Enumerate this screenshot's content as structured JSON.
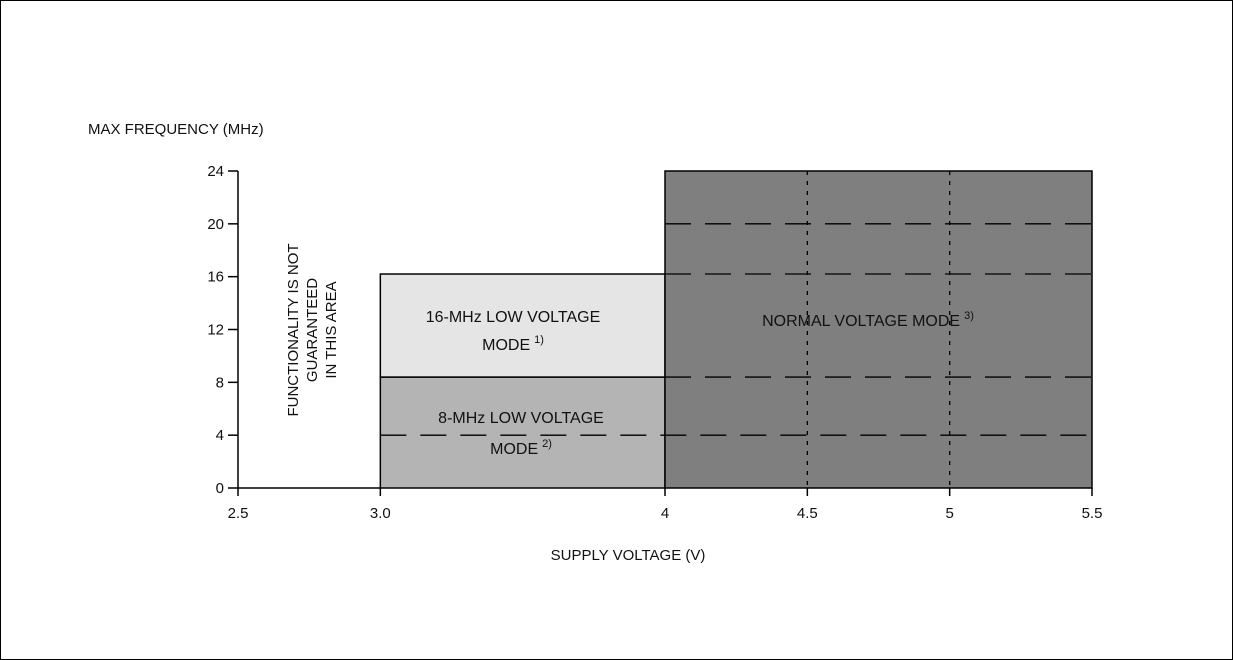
{
  "chart_data": {
    "type": "area",
    "title": "",
    "xlabel": "SUPPLY VOLTAGE (V)",
    "ylabel": "MAX FREQUENCY (MHz)",
    "xlim": [
      2.5,
      5.5
    ],
    "ylim": [
      0,
      24
    ],
    "x_ticks": [
      {
        "value": 2.5,
        "label": "2.5"
      },
      {
        "value": 3.0,
        "label": "3.0"
      },
      {
        "value": 4,
        "label": "4"
      },
      {
        "value": 4.5,
        "label": "4.5"
      },
      {
        "value": 5,
        "label": "5"
      },
      {
        "value": 5.5,
        "label": "5.5"
      }
    ],
    "y_ticks": [
      {
        "value": 0,
        "label": "0"
      },
      {
        "value": 4,
        "label": "4"
      },
      {
        "value": 8,
        "label": "8"
      },
      {
        "value": 12,
        "label": "12"
      },
      {
        "value": 16,
        "label": "16"
      },
      {
        "value": 20,
        "label": "20"
      },
      {
        "value": 24,
        "label": "24"
      }
    ],
    "regions": [
      {
        "name": "8-MHz LOW VOLTAGE MODE",
        "label_lines": [
          "8-MHz LOW  VOLTAGE",
          "MODE"
        ],
        "note": "2)",
        "x0": 3.0,
        "x1": 4,
        "y0": 0,
        "y1": 8.4,
        "color": "#b4b4b4"
      },
      {
        "name": "16-MHz LOW VOLTAGE MODE",
        "label_lines": [
          "16-MHz LOW VOLTAGE",
          "MODE"
        ],
        "note": "1)",
        "x0": 3.0,
        "x1": 4,
        "y0": 8.4,
        "y1": 16.2,
        "color": "#e5e5e5"
      },
      {
        "name": "NORMAL VOLTAGE MODE",
        "label_lines": [
          "NORMAL VOLTAGE MODE"
        ],
        "note": "3)",
        "x0": 4,
        "x1": 5.5,
        "y0": 0,
        "y1": 24,
        "color": "#7f7f7f"
      }
    ],
    "dashed_h_lines": [
      {
        "y": 4,
        "x0": 3.0,
        "x1": 5.5
      },
      {
        "y": 8.4,
        "x0": 4,
        "x1": 5.5
      },
      {
        "y": 16.2,
        "x0": 4,
        "x1": 5.5
      },
      {
        "y": 20,
        "x0": 4,
        "x1": 5.5
      }
    ],
    "dotted_v_lines": [
      4.5,
      5
    ],
    "annotation": {
      "lines": [
        "FUNCTIONALITY IS NOT",
        "GUARANTEED",
        "IN THIS AREA"
      ]
    },
    "grid": false,
    "legend": "none"
  }
}
